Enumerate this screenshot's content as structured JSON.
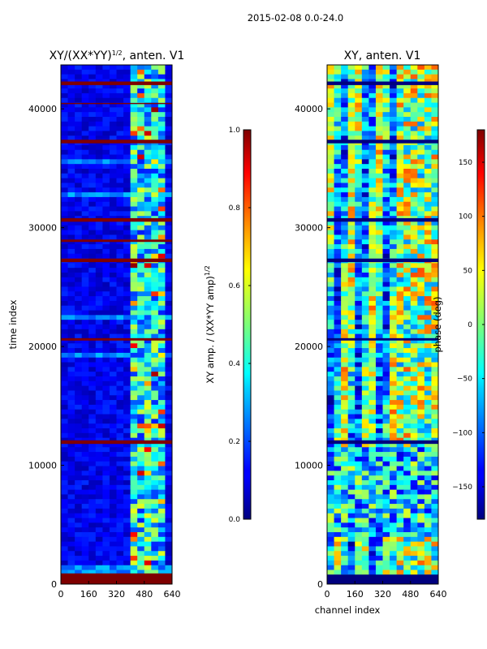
{
  "header": {
    "date_range": "2015-02-08 0.0-24.0"
  },
  "chart_data": [
    {
      "type": "heatmap",
      "title_main": "XY/(XX*YY)",
      "title_sup": "1/2",
      "title_rest": ", anten. V1",
      "xlabel": "",
      "ylabel": "time index",
      "x_ticks": [
        0,
        160,
        320,
        480,
        640
      ],
      "y_ticks": [
        0,
        10000,
        20000,
        30000,
        40000
      ],
      "xlim": [
        0,
        640
      ],
      "ylim": [
        0,
        43700
      ],
      "colorbar": {
        "label": "XY amp. / (XX*YY amp)",
        "label_sup": "1/2",
        "range": [
          0.0,
          1.0
        ],
        "ticks": [
          "0.0",
          "0.2",
          "0.4",
          "0.6",
          "0.8",
          "1.0"
        ],
        "tick_values": [
          0.0,
          0.2,
          0.4,
          0.6,
          0.8,
          1.0
        ]
      },
      "flagged_time_bands": [
        {
          "y0": 0,
          "y1": 900
        },
        {
          "y0": 37100,
          "y1": 37400
        },
        {
          "y0": 42000,
          "y1": 42300
        },
        {
          "y0": 40400,
          "y1": 40500
        },
        {
          "y0": 30500,
          "y1": 30800
        },
        {
          "y0": 28800,
          "y1": 29000
        },
        {
          "y0": 27100,
          "y1": 27400
        },
        {
          "y0": 20500,
          "y1": 20700
        },
        {
          "y0": 11800,
          "y1": 12100
        }
      ]
    },
    {
      "type": "heatmap",
      "title_main": "XY, anten. V1",
      "xlabel": "channel index",
      "ylabel": "",
      "x_ticks": [
        0,
        160,
        320,
        480,
        640
      ],
      "y_ticks": [
        0,
        10000,
        20000,
        30000,
        40000
      ],
      "xlim": [
        0,
        640
      ],
      "ylim": [
        0,
        43700
      ],
      "colorbar": {
        "label": "phase (deg)",
        "range": [
          -180,
          180
        ],
        "ticks": [
          "150",
          "100",
          "50",
          "0",
          "−50",
          "−100",
          "−150"
        ],
        "tick_values": [
          150,
          100,
          50,
          0,
          -50,
          -100,
          -150
        ]
      },
      "flagged_time_bands": [
        {
          "y0": 0,
          "y1": 800
        },
        {
          "y0": 37100,
          "y1": 37400
        },
        {
          "y0": 42000,
          "y1": 42300
        },
        {
          "y0": 30500,
          "y1": 30800
        },
        {
          "y0": 27100,
          "y1": 27400
        },
        {
          "y0": 20500,
          "y1": 20700
        },
        {
          "y0": 11800,
          "y1": 12100
        }
      ]
    }
  ]
}
